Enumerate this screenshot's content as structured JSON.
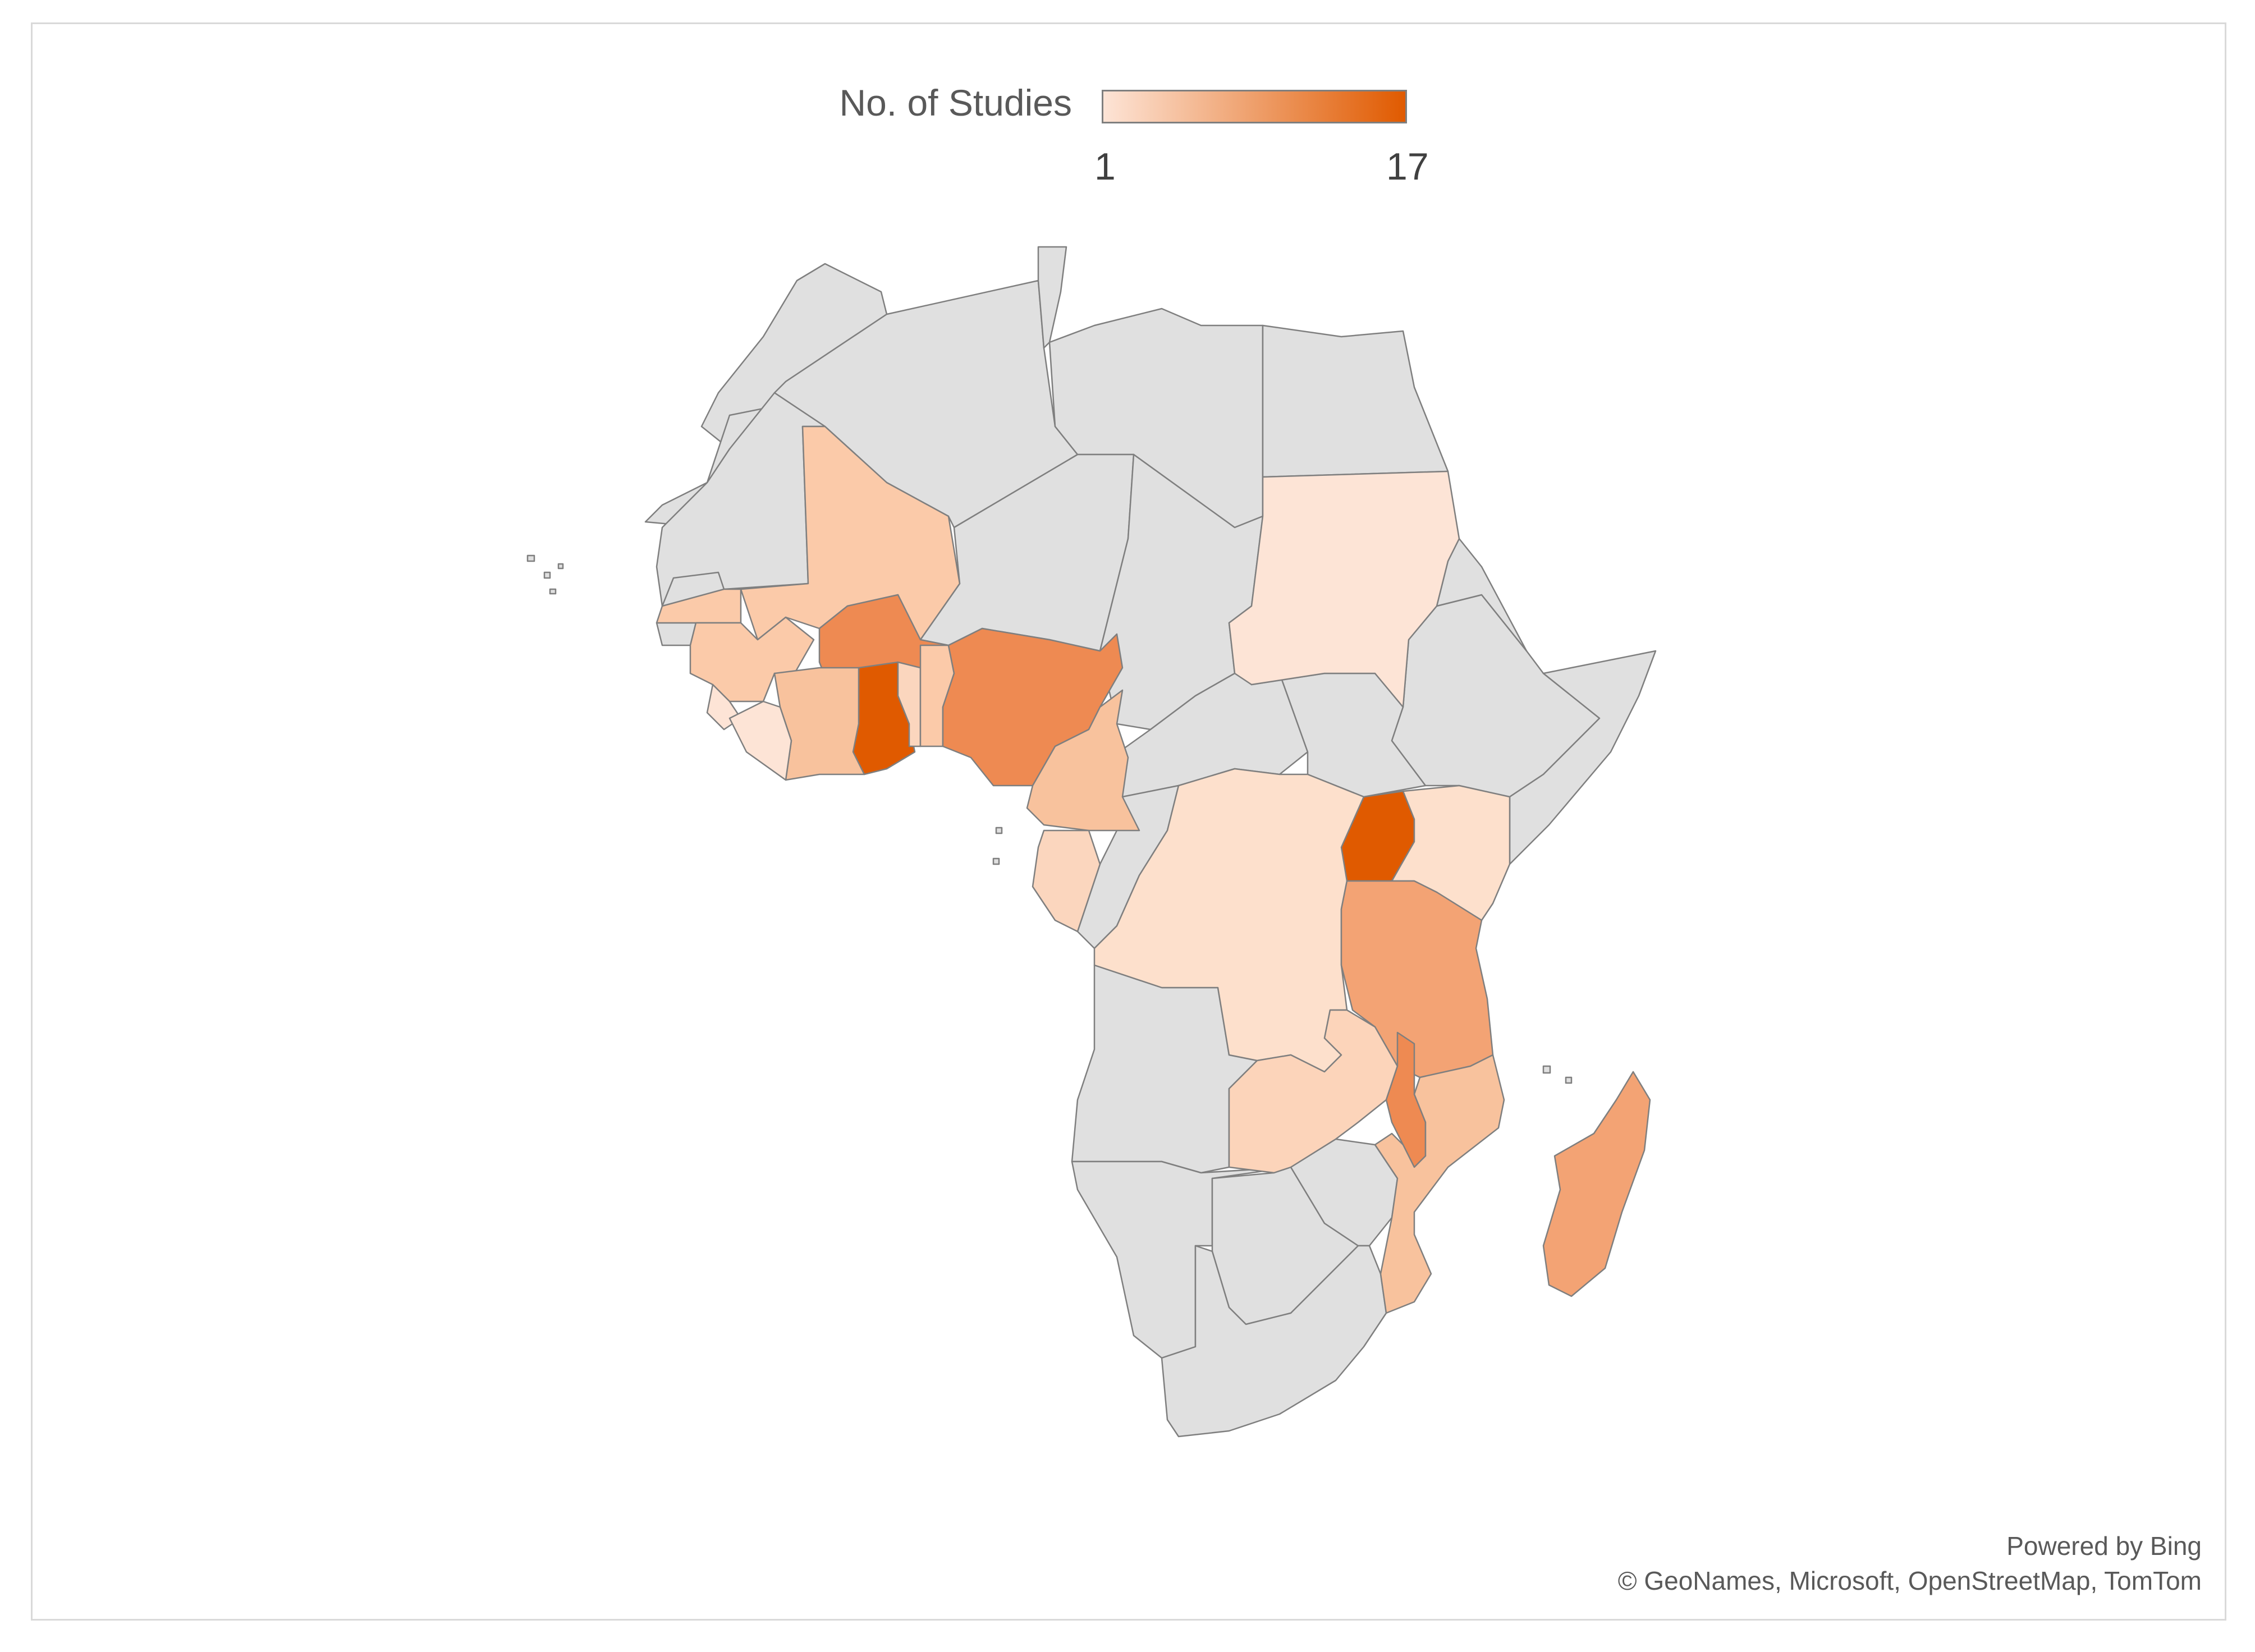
{
  "legend": {
    "title": "No. of Studies",
    "min_label": "1",
    "max_label": "17",
    "min_value": 1,
    "max_value": 17,
    "color_low": "#fde4d6",
    "color_high": "#e05a00"
  },
  "no_data_color": "#e0e0e0",
  "border_color": "#7f7f7f",
  "countries": [
    {
      "name": "Mali",
      "studies": 4
    },
    {
      "name": "Senegal",
      "studies": 4
    },
    {
      "name": "Guinea",
      "studies": 4
    },
    {
      "name": "Burkina Faso",
      "studies": 10
    },
    {
      "name": "Ghana",
      "studies": 17
    },
    {
      "name": "Côte d'Ivoire",
      "studies": 5
    },
    {
      "name": "Sierra Leone",
      "studies": 2
    },
    {
      "name": "Liberia",
      "studies": 2
    },
    {
      "name": "Togo",
      "studies": 3
    },
    {
      "name": "Benin",
      "studies": 4
    },
    {
      "name": "Nigeria",
      "studies": 11
    },
    {
      "name": "Cameroon",
      "studies": 5
    },
    {
      "name": "Gabon",
      "studies": 3
    },
    {
      "name": "Sudan",
      "studies": 2
    },
    {
      "name": "Uganda",
      "studies": 17
    },
    {
      "name": "Kenya",
      "studies": 2
    },
    {
      "name": "DR Congo",
      "studies": 2
    },
    {
      "name": "Tanzania",
      "studies": 7
    },
    {
      "name": "Zambia",
      "studies": 3
    },
    {
      "name": "Malawi",
      "studies": 9
    },
    {
      "name": "Mozambique",
      "studies": 4
    },
    {
      "name": "Madagascar",
      "studies": 6
    }
  ],
  "attribution": {
    "line1": "Powered by Bing",
    "line2": "© GeoNames, Microsoft, OpenStreetMap, TomTom"
  }
}
